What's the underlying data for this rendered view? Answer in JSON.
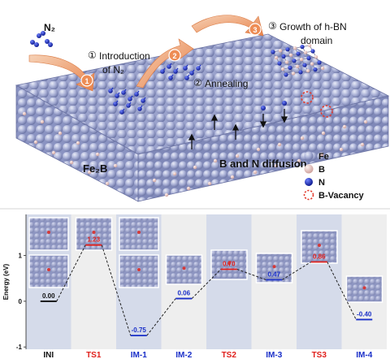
{
  "scheme": {
    "gas_label": "N₂",
    "step1_num": "①",
    "step1_line1": "Introduction",
    "step1_line2": "of N₂",
    "step2_num": "②",
    "step2_label": "Annealing",
    "step3_num": "③",
    "step3_line1": "Growth of h-BN",
    "step3_line2": "domain",
    "substrate_label": "Fe₂B",
    "diffusion_label": "B and N diffusion",
    "arrow_badges": [
      "1",
      "2",
      "3"
    ],
    "legend": [
      {
        "label": "Fe",
        "color": "#9ea6cf"
      },
      {
        "label": "B",
        "color": "#e7c6c2"
      },
      {
        "label": "N",
        "color": "#1f2fbf"
      },
      {
        "label": "B-Vacancy",
        "color": "#e23c2e"
      }
    ]
  },
  "energy_chart": {
    "ylabel": "Energy (eV)",
    "ylim": [
      -1.05,
      1.9
    ],
    "yticks": [
      1,
      0,
      -1
    ],
    "categories": [
      "INI",
      "TS1",
      "IM-1",
      "IM-2",
      "TS2",
      "IM-3",
      "TS3",
      "IM-4"
    ],
    "values": [
      0.0,
      1.23,
      -0.75,
      0.06,
      0.7,
      0.47,
      0.86,
      -0.4
    ],
    "labels": [
      "0.00",
      "1.23",
      "-0.75",
      "0.06",
      "0.70",
      "0.47",
      "0.86",
      "-0.40"
    ],
    "kinds": [
      "ini",
      "ts",
      "im",
      "im",
      "ts",
      "im",
      "ts",
      "im"
    ],
    "colors": {
      "ini": "#111111",
      "ts": "#e0201c",
      "im": "#1a2fc8"
    },
    "shaded_columns": [
      0,
      2,
      4,
      6
    ]
  }
}
